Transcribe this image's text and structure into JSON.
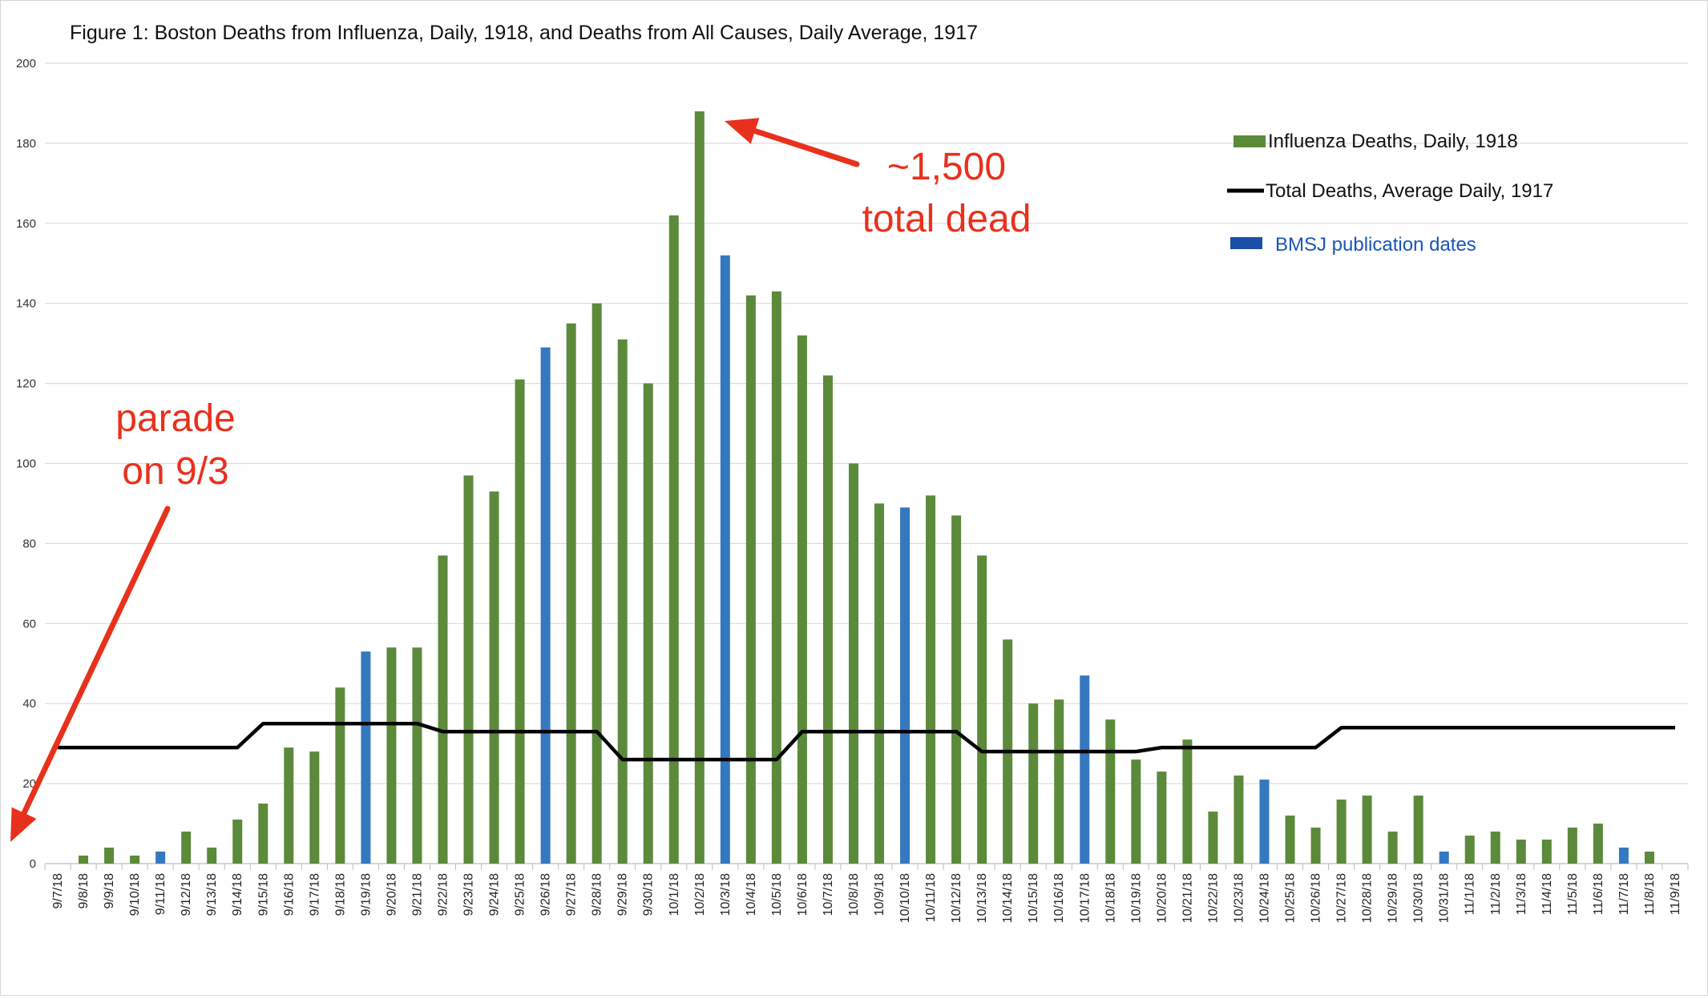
{
  "chart_data": {
    "type": "bar",
    "title": "Figure 1: Boston Deaths from Influenza, Daily, 1918, and Deaths from All Causes, Daily Average, 1917",
    "xlabel": "",
    "ylabel": "",
    "ylim": [
      0,
      200
    ],
    "yticks": [
      0,
      20,
      40,
      60,
      80,
      100,
      120,
      140,
      160,
      180,
      200
    ],
    "grid": true,
    "legend_position": "top-right",
    "categories": [
      "9/7/18",
      "9/8/18",
      "9/9/18",
      "9/10/18",
      "9/11/18",
      "9/12/18",
      "9/13/18",
      "9/14/18",
      "9/15/18",
      "9/16/18",
      "9/17/18",
      "9/18/18",
      "9/19/18",
      "9/20/18",
      "9/21/18",
      "9/22/18",
      "9/23/18",
      "9/24/18",
      "9/25/18",
      "9/26/18",
      "9/27/18",
      "9/28/18",
      "9/29/18",
      "9/30/18",
      "10/1/18",
      "10/2/18",
      "10/3/18",
      "10/4/18",
      "10/5/18",
      "10/6/18",
      "10/7/18",
      "10/8/18",
      "10/9/18",
      "10/10/18",
      "10/11/18",
      "10/12/18",
      "10/13/18",
      "10/14/18",
      "10/15/18",
      "10/16/18",
      "10/17/18",
      "10/18/18",
      "10/19/18",
      "10/20/18",
      "10/21/18",
      "10/22/18",
      "10/23/18",
      "10/24/18",
      "10/25/18",
      "10/26/18",
      "10/27/18",
      "10/28/18",
      "10/29/18",
      "10/30/18",
      "10/31/18",
      "11/1/18",
      "11/2/18",
      "11/3/18",
      "11/4/18",
      "11/5/18",
      "11/6/18",
      "11/7/18",
      "11/8/18",
      "11/9/18"
    ],
    "series": [
      {
        "name": "Influenza Deaths, Daily, 1918",
        "kind": "bar",
        "color": "#5b8a3a",
        "values": [
          null,
          2,
          4,
          2,
          3,
          8,
          4,
          11,
          15,
          29,
          28,
          44,
          53,
          54,
          54,
          77,
          97,
          93,
          121,
          129,
          135,
          140,
          131,
          120,
          162,
          188,
          152,
          142,
          143,
          132,
          122,
          100,
          90,
          89,
          92,
          87,
          77,
          56,
          40,
          41,
          47,
          36,
          26,
          23,
          31,
          13,
          22,
          21,
          12,
          9,
          16,
          17,
          8,
          17,
          3,
          7,
          8,
          6,
          6,
          9,
          10,
          4,
          3,
          null
        ]
      },
      {
        "name": "Total Deaths, Average Daily,  1917",
        "kind": "line",
        "color": "#000000",
        "values": [
          29,
          29,
          29,
          29,
          29,
          29,
          29,
          29,
          35,
          35,
          35,
          35,
          35,
          35,
          35,
          33,
          33,
          33,
          33,
          33,
          33,
          33,
          26,
          26,
          26,
          26,
          26,
          26,
          26,
          33,
          33,
          33,
          33,
          33,
          33,
          33,
          28,
          28,
          28,
          28,
          28,
          28,
          28,
          29,
          29,
          29,
          29,
          29,
          29,
          29,
          34,
          34,
          34,
          34,
          34,
          34,
          34,
          34,
          34,
          34,
          34,
          34,
          34,
          34
        ]
      }
    ],
    "highlight": {
      "name": "BMSJ publication dates",
      "color": "#3478c0",
      "categories": [
        "9/11/18",
        "9/19/18",
        "9/26/18",
        "10/3/18",
        "10/10/18",
        "10/17/18",
        "10/24/18",
        "10/31/18",
        "11/7/18"
      ]
    },
    "legend": [
      {
        "label": "Influenza Deaths, Daily, 1918",
        "color": "#5b8a3a",
        "shape": "bar"
      },
      {
        "label": "Total Deaths, Average Daily,  1917",
        "color": "#000000",
        "shape": "line"
      },
      {
        "label": "BMSJ publication dates",
        "color": "#1a4fa8",
        "shape": "bar"
      }
    ],
    "annotations": [
      {
        "lines": [
          "~1,500",
          "total dead"
        ],
        "color": "#e8311c",
        "points_to": "10/2/18"
      },
      {
        "lines": [
          "parade",
          "on 9/3"
        ],
        "color": "#e8311c",
        "points_to": "origin"
      }
    ]
  }
}
